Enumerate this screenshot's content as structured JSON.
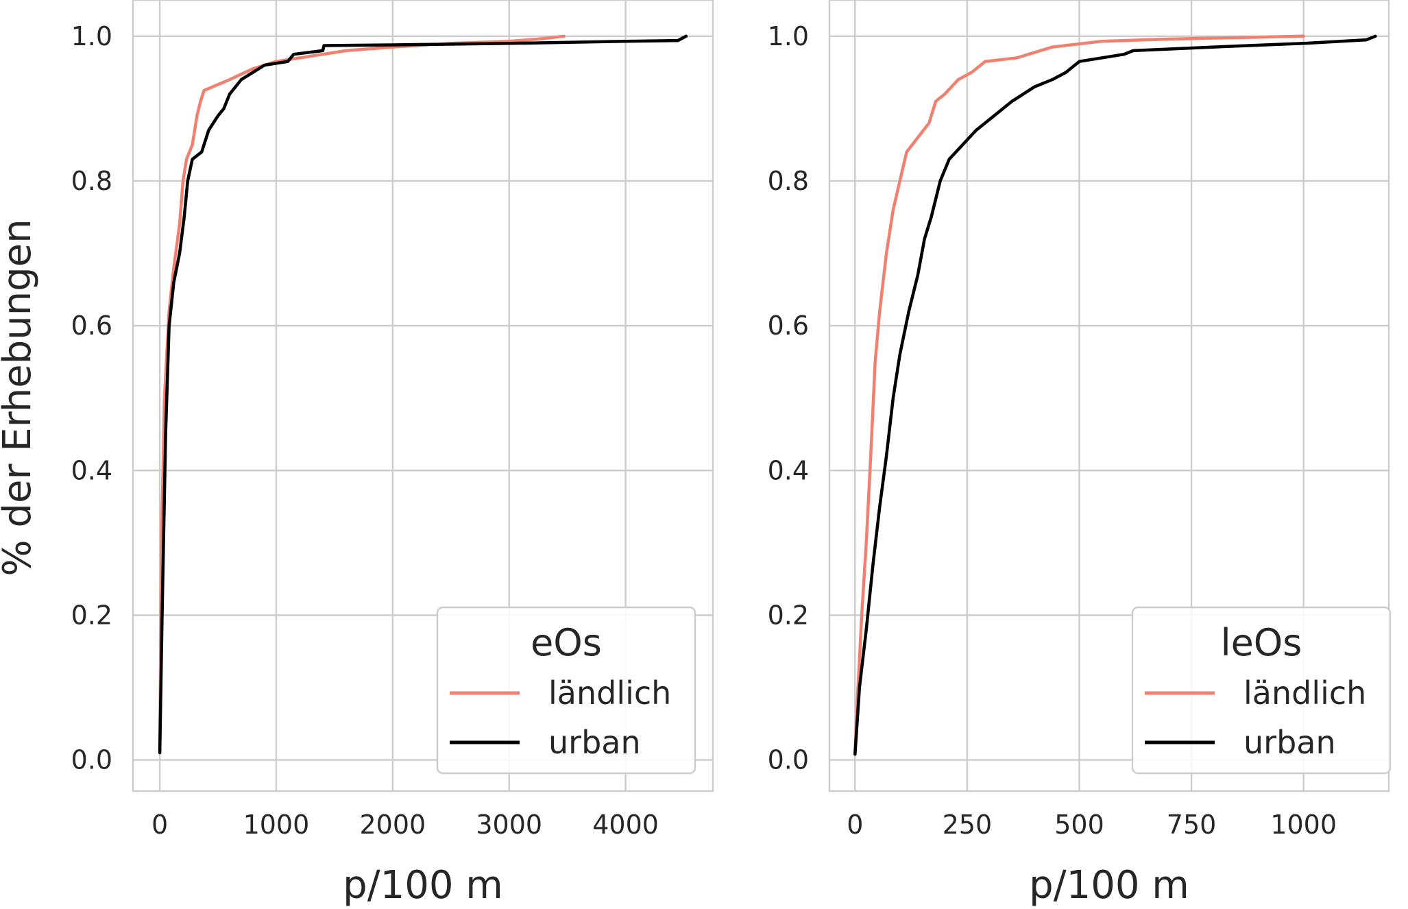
{
  "figure": {
    "ylabel": "% der Erhebungen"
  },
  "chart_data": [
    {
      "type": "line",
      "title": "",
      "xlabel": "p/100 m",
      "ylabel": "% der Erhebungen",
      "xlim": [
        -230,
        4750
      ],
      "ylim": [
        -0.043,
        1.05
      ],
      "xticks": [
        0,
        1000,
        2000,
        3000,
        4000
      ],
      "xtick_labels": [
        "0",
        "1000",
        "2000",
        "3000",
        "4000"
      ],
      "yticks": [
        0.0,
        0.2,
        0.4,
        0.6,
        0.8,
        1.0
      ],
      "ytick_labels": [
        "0.0",
        "0.2",
        "0.4",
        "0.6",
        "0.8",
        "1.0"
      ],
      "grid": true,
      "legend": {
        "title": "eOs",
        "placement": "lower-right"
      },
      "series": [
        {
          "name": "ländlich",
          "color": "#f08070",
          "points": [
            [
              0,
              0.01
            ],
            [
              15,
              0.3
            ],
            [
              40,
              0.5
            ],
            [
              80,
              0.62
            ],
            [
              120,
              0.68
            ],
            [
              170,
              0.74
            ],
            [
              200,
              0.8
            ],
            [
              230,
              0.83
            ],
            [
              280,
              0.85
            ],
            [
              320,
              0.89
            ],
            [
              350,
              0.91
            ],
            [
              380,
              0.925
            ],
            [
              600,
              0.94
            ],
            [
              800,
              0.955
            ],
            [
              1000,
              0.965
            ],
            [
              1200,
              0.97
            ],
            [
              1400,
              0.975
            ],
            [
              1600,
              0.98
            ],
            [
              2000,
              0.985
            ],
            [
              2500,
              0.99
            ],
            [
              3000,
              0.993
            ],
            [
              3250,
              0.996
            ],
            [
              3470,
              1.0
            ]
          ]
        },
        {
          "name": "urban",
          "color": "#000000",
          "points": [
            [
              0,
              0.01
            ],
            [
              20,
              0.2
            ],
            [
              50,
              0.45
            ],
            [
              80,
              0.6
            ],
            [
              120,
              0.66
            ],
            [
              170,
              0.7
            ],
            [
              210,
              0.75
            ],
            [
              240,
              0.8
            ],
            [
              280,
              0.83
            ],
            [
              360,
              0.84
            ],
            [
              420,
              0.87
            ],
            [
              500,
              0.89
            ],
            [
              550,
              0.9
            ],
            [
              600,
              0.92
            ],
            [
              700,
              0.94
            ],
            [
              800,
              0.95
            ],
            [
              900,
              0.96
            ],
            [
              1100,
              0.965
            ],
            [
              1150,
              0.975
            ],
            [
              1400,
              0.98
            ],
            [
              1410,
              0.987
            ],
            [
              2000,
              0.988
            ],
            [
              3000,
              0.99
            ],
            [
              4000,
              0.993
            ],
            [
              4450,
              0.994
            ],
            [
              4520,
              1.0
            ]
          ]
        }
      ]
    },
    {
      "type": "line",
      "title": "",
      "xlabel": "p/100 m",
      "ylabel": "",
      "xlim": [
        -57,
        1190
      ],
      "ylim": [
        -0.043,
        1.05
      ],
      "xticks": [
        0,
        250,
        500,
        750,
        1000
      ],
      "xtick_labels": [
        "0",
        "250",
        "500",
        "750",
        "1000"
      ],
      "yticks": [
        0.0,
        0.2,
        0.4,
        0.6,
        0.8,
        1.0
      ],
      "ytick_labels": [
        "0.0",
        "0.2",
        "0.4",
        "0.6",
        "0.8",
        "1.0"
      ],
      "grid": true,
      "legend": {
        "title": "leOs",
        "placement": "lower-right"
      },
      "series": [
        {
          "name": "ländlich",
          "color": "#f08070",
          "points": [
            [
              0,
              0.01
            ],
            [
              5,
              0.08
            ],
            [
              15,
              0.2
            ],
            [
              25,
              0.3
            ],
            [
              35,
              0.42
            ],
            [
              45,
              0.55
            ],
            [
              55,
              0.62
            ],
            [
              70,
              0.7
            ],
            [
              85,
              0.76
            ],
            [
              100,
              0.8
            ],
            [
              115,
              0.84
            ],
            [
              140,
              0.86
            ],
            [
              165,
              0.88
            ],
            [
              180,
              0.91
            ],
            [
              200,
              0.92
            ],
            [
              230,
              0.94
            ],
            [
              260,
              0.95
            ],
            [
              290,
              0.965
            ],
            [
              360,
              0.97
            ],
            [
              440,
              0.985
            ],
            [
              550,
              0.993
            ],
            [
              700,
              0.996
            ],
            [
              1000,
              1.0
            ]
          ]
        },
        {
          "name": "urban",
          "color": "#000000",
          "points": [
            [
              0,
              0.008
            ],
            [
              10,
              0.1
            ],
            [
              25,
              0.18
            ],
            [
              40,
              0.27
            ],
            [
              55,
              0.35
            ],
            [
              70,
              0.42
            ],
            [
              85,
              0.5
            ],
            [
              100,
              0.56
            ],
            [
              120,
              0.62
            ],
            [
              140,
              0.67
            ],
            [
              155,
              0.72
            ],
            [
              170,
              0.75
            ],
            [
              190,
              0.8
            ],
            [
              210,
              0.83
            ],
            [
              240,
              0.85
            ],
            [
              270,
              0.87
            ],
            [
              310,
              0.89
            ],
            [
              350,
              0.91
            ],
            [
              400,
              0.93
            ],
            [
              440,
              0.94
            ],
            [
              470,
              0.95
            ],
            [
              500,
              0.965
            ],
            [
              600,
              0.975
            ],
            [
              620,
              0.98
            ],
            [
              800,
              0.985
            ],
            [
              1000,
              0.99
            ],
            [
              1140,
              0.995
            ],
            [
              1160,
              1.0
            ]
          ]
        }
      ]
    }
  ]
}
